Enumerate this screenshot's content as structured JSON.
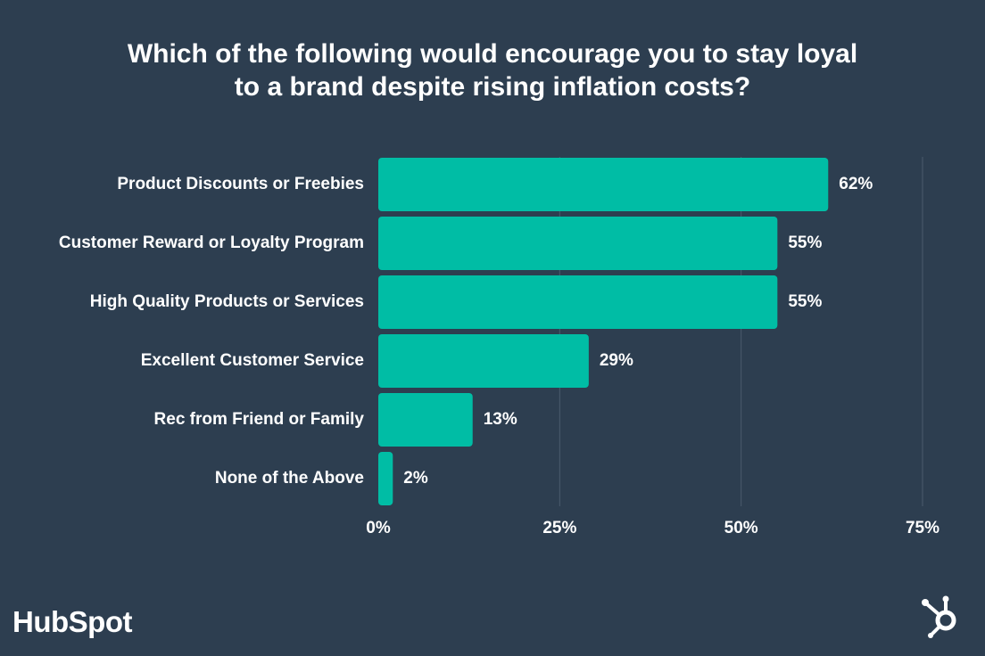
{
  "chart_data": {
    "type": "bar",
    "orientation": "horizontal",
    "title": "Which of the following would encourage you to stay loyal to a brand despite rising inflation costs?",
    "title_lines": [
      "Which of the following would encourage you to stay loyal",
      "to a brand despite rising inflation costs?"
    ],
    "categories": [
      "Product Discounts or Freebies",
      "Customer Reward or Loyalty Program",
      "High Quality Products or Services",
      "Excellent Customer Service",
      "Rec from Friend or Family",
      "None of the Above"
    ],
    "values": [
      62,
      55,
      55,
      29,
      13,
      2
    ],
    "value_labels": [
      "62%",
      "55%",
      "55%",
      "29%",
      "13%",
      "2%"
    ],
    "xlim": [
      0,
      75
    ],
    "x_ticks": [
      0,
      25,
      50,
      75
    ],
    "x_tick_labels": [
      "0%",
      "25%",
      "50%",
      "75%"
    ],
    "xlabel": "",
    "ylabel": "",
    "grid": true,
    "legend": "none"
  },
  "branding": {
    "logo_text": "HubSpot",
    "logo_icon": "hubspot-sprocket-icon"
  },
  "colors": {
    "background": "#2d3e50",
    "bar": "#00bda5",
    "text": "#ffffff",
    "grid": "#4a5b6d"
  }
}
